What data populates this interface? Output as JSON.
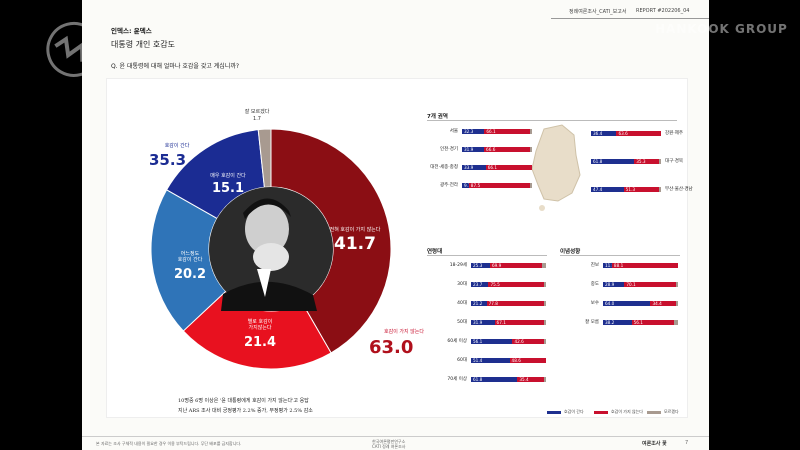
{
  "header": {
    "title": "정례여론조사_CATI_보고서",
    "report": "REPORT #202206_04"
  },
  "section": "인덱스: 윤덱스",
  "subtitle": "대통령 개인 호감도",
  "question": "Q.  윤 대통령에 대해 얼마나 호감을 갖고 계십니까?",
  "watermark": {
    "group": "HANKOOK GROUP"
  },
  "donut": {
    "segments": [
      {
        "label": "전혀 호감이 가지 않는다",
        "value": 41.7,
        "color": "#8b0e14"
      },
      {
        "label": "별로 호감이 가지 않는다",
        "value": 21.4,
        "color": "#e8111f"
      },
      {
        "label": "어느정도 호감이 간다",
        "value": 20.2,
        "color": "#2f74b8"
      },
      {
        "label": "매우 호감이 간다",
        "value": 15.1,
        "color": "#1b2c93"
      },
      {
        "label": "잘 모르겠다",
        "value": 1.7,
        "color": "#a89a90"
      }
    ],
    "positive": {
      "label": "호감이 간다",
      "value": "35.3"
    },
    "negative": {
      "label": "호감이 가지 않는다",
      "value": "63.0"
    },
    "dk": {
      "label": "잘 모르겠다",
      "value": "1.7"
    },
    "seg_labels": {
      "s1": {
        "label": "전혀 호감이 가지 않는다",
        "value": "41.7"
      },
      "s2": {
        "label": "별로 호감이\n가지않는다",
        "value": "21.4"
      },
      "s3": {
        "label": "어느정도\n호감이 간다",
        "value": "20.2"
      },
      "s4": {
        "label": "매우 호감이 간다",
        "value": "15.1"
      }
    }
  },
  "note": {
    "line1": "10명중 6명 이상은 '윤 대통령에게 호감이 가지 않는다'고 응답",
    "line2": "지난 ARS 조사 대비 긍정평가 2.2% 증가, 부정평가 2.5% 감소"
  },
  "region": {
    "title": "7개 권역",
    "left": [
      {
        "name": "서울",
        "pos": "32.3",
        "neg": "66.1",
        "p": 32.3,
        "n": 66.1
      },
      {
        "name": "인천·경기",
        "pos": "31.9",
        "neg": "66.6",
        "p": 31.9,
        "n": 66.6
      },
      {
        "name": "대전·세종·충청",
        "pos": "33.9",
        "neg": "66.1",
        "p": 33.9,
        "n": 66.1
      },
      {
        "name": "광주·전라",
        "pos": "9.7",
        "neg": "87.5",
        "p": 9.7,
        "n": 87.5
      }
    ],
    "right": [
      {
        "name": "강원·제주",
        "pos": "36.4",
        "neg": "63.6",
        "p": 36.4,
        "n": 63.6
      },
      {
        "name": "대구·경북",
        "pos": "61.8",
        "neg": "35.3",
        "p": 61.8,
        "n": 35.3
      },
      {
        "name": "부산·울산·경남",
        "pos": "47.4",
        "neg": "51.3",
        "p": 47.4,
        "n": 51.3
      }
    ]
  },
  "age": {
    "title": "연령대",
    "rows": [
      {
        "name": "18-29세",
        "pos": "25.3",
        "neg": "69.9",
        "p": 25.3,
        "n": 69.9
      },
      {
        "name": "30대",
        "pos": "23.7",
        "neg": "75.5",
        "p": 23.7,
        "n": 75.5
      },
      {
        "name": "40대",
        "pos": "21.2",
        "neg": "77.8",
        "p": 21.2,
        "n": 77.8
      },
      {
        "name": "50대",
        "pos": "31.9",
        "neg": "67.1",
        "p": 31.9,
        "n": 67.1
      },
      {
        "name": "60세 이상",
        "pos": "56.1",
        "neg": "42.6",
        "p": 56.1,
        "n": 42.6
      },
      {
        "name": "60대",
        "pos": "51.4",
        "neg": "48.6",
        "p": 51.4,
        "n": 48.6
      },
      {
        "name": "70세 이상",
        "pos": "61.8",
        "neg": "35.4",
        "p": 61.8,
        "n": 35.4
      }
    ]
  },
  "ideology": {
    "title": "이념성향",
    "rows": [
      {
        "name": "진보",
        "pos": "11.9",
        "neg": "88.1",
        "p": 11.9,
        "n": 88.1
      },
      {
        "name": "중도",
        "pos": "28.9",
        "neg": "70.1",
        "p": 28.9,
        "n": 70.1
      },
      {
        "name": "보수",
        "pos": "64.0",
        "neg": "34.4",
        "p": 64.0,
        "n": 34.4
      },
      {
        "name": "잘 모름",
        "pos": "38.2",
        "neg": "56.1",
        "p": 38.2,
        "n": 56.1
      }
    ]
  },
  "legend": {
    "pos": "호감이 간다",
    "neg": "호감이 가지 않는다",
    "dk": "모르겠다"
  },
  "footer": {
    "left": "본 자료는 조사 구체적 내용이 필요한 경우 이용 부탁드립니다. 무단 배포를 금지합니다.",
    "center": "한국여론평판연구소\nCATI 정례 여론조사",
    "right": "여론조사 꽃",
    "page": "7"
  },
  "colors": {
    "pos": "#1e2f8f",
    "neg": "#c8102e",
    "dk": "#a89a90"
  }
}
